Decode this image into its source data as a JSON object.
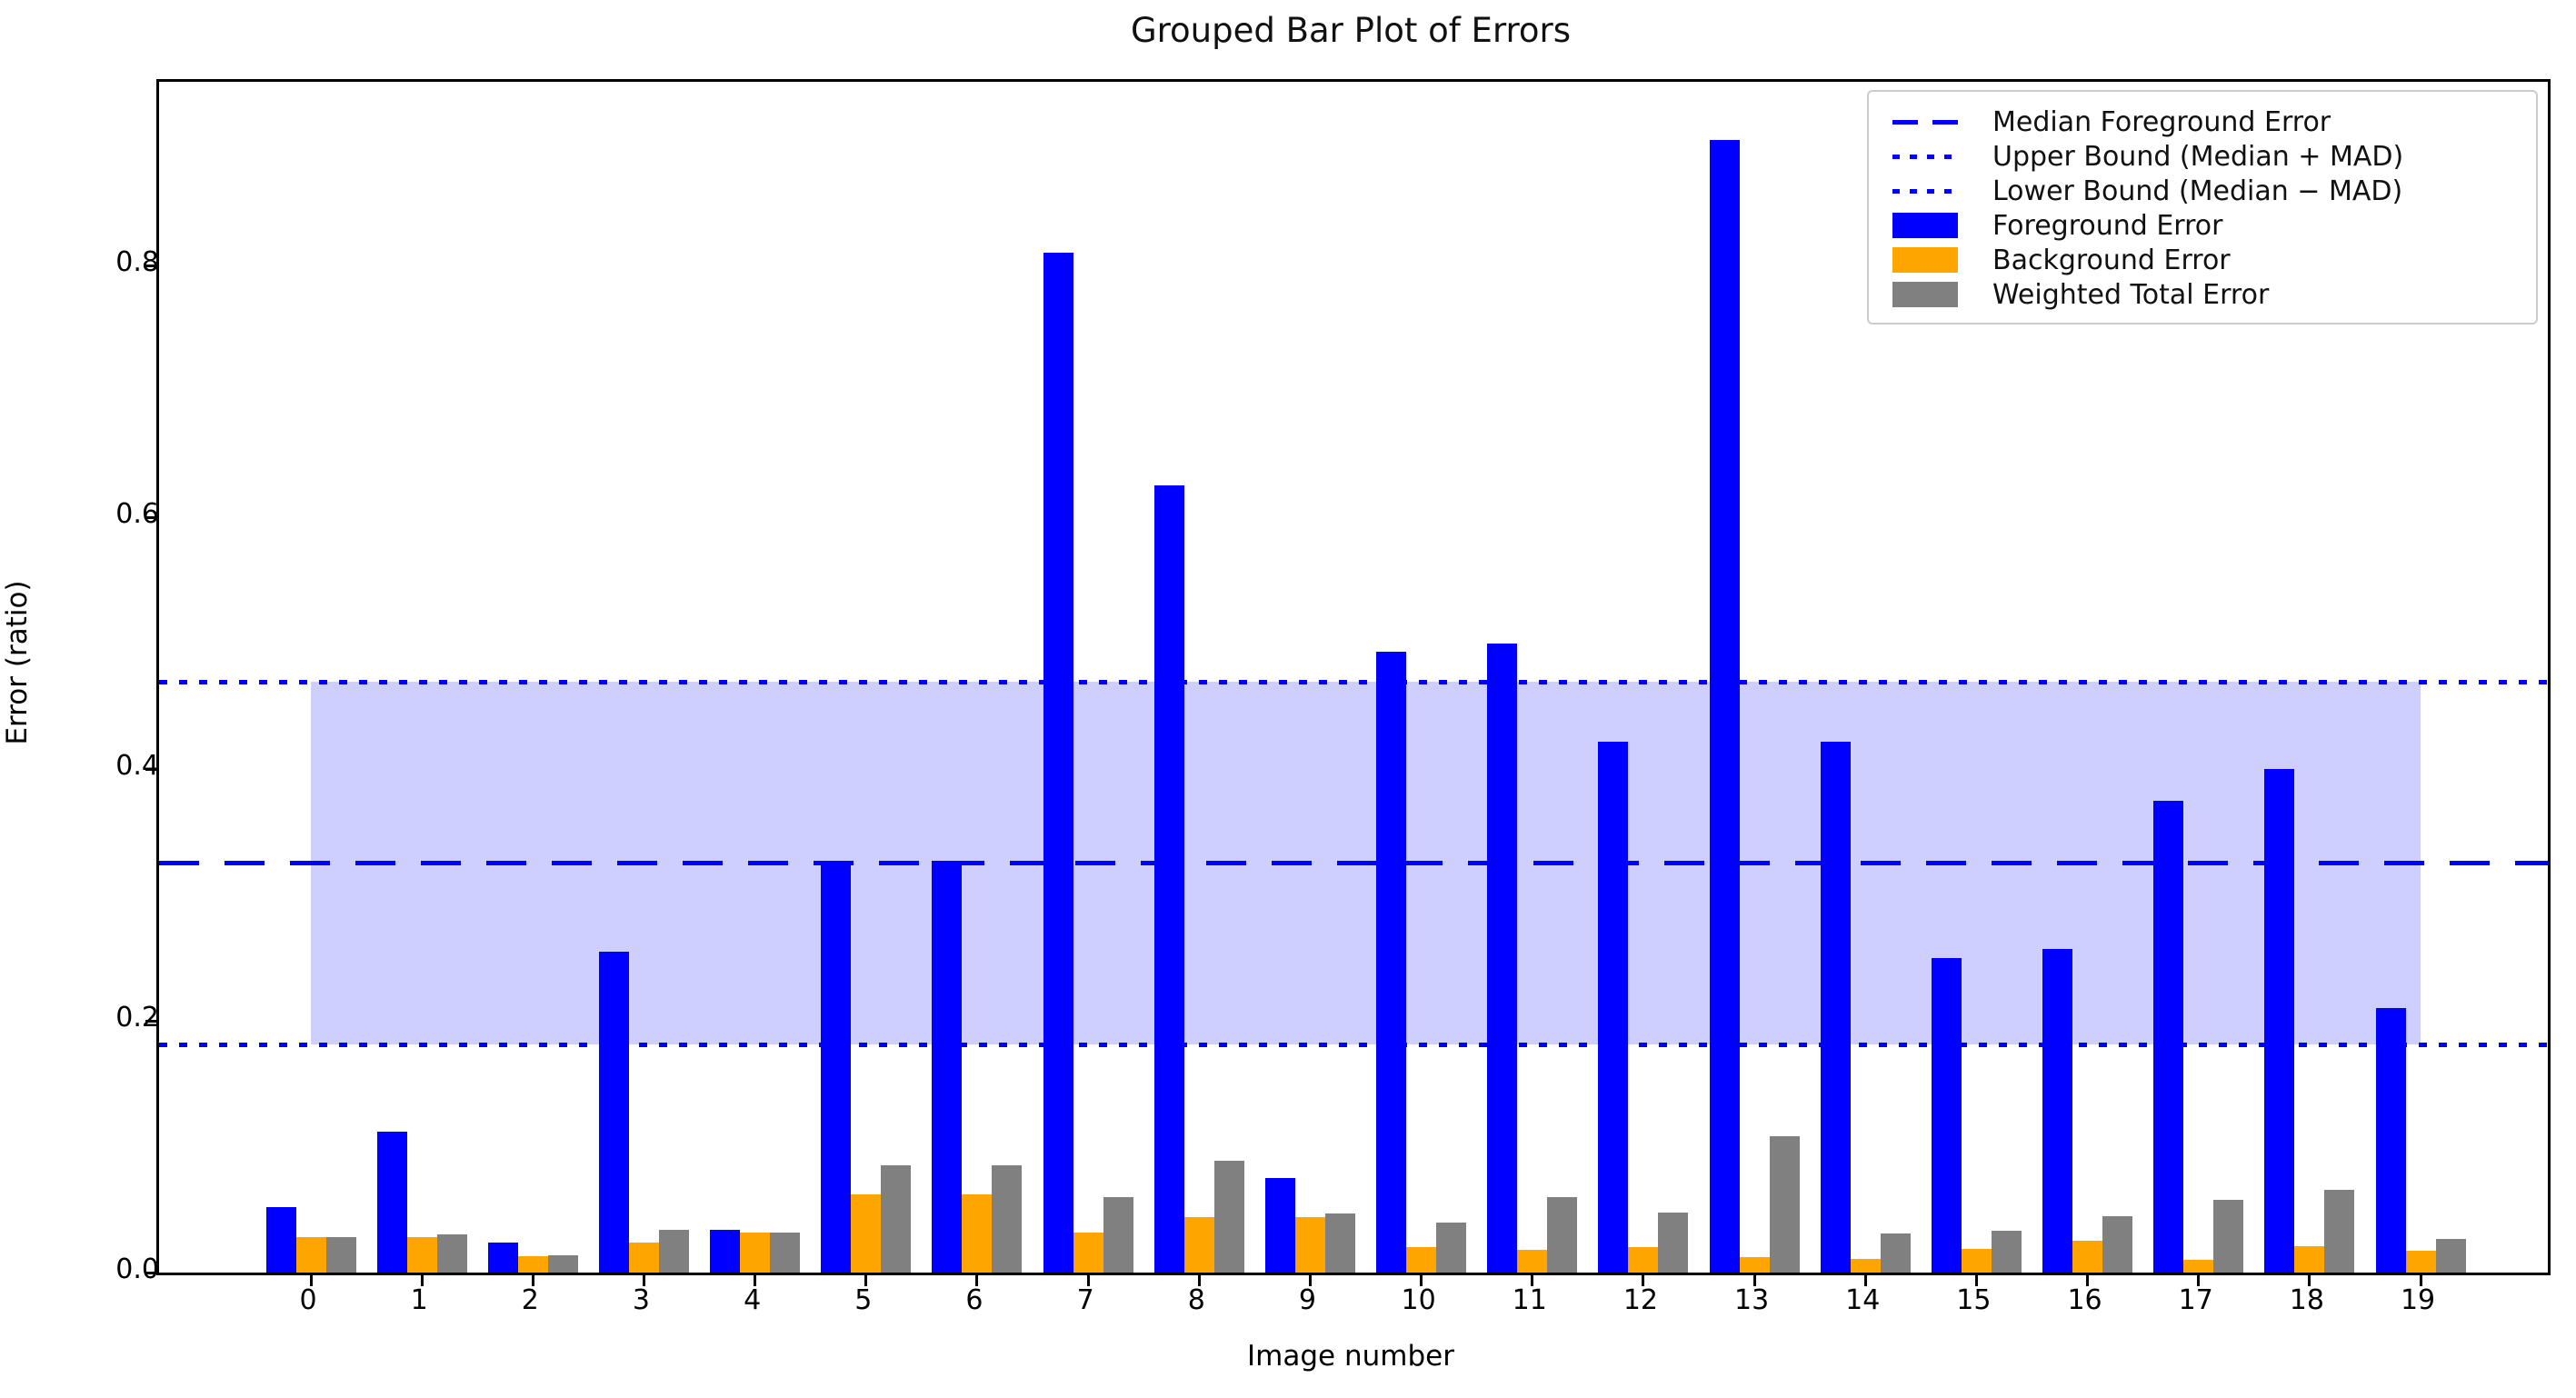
{
  "chart_data": {
    "type": "bar",
    "title": "Grouped Bar Plot of Errors",
    "xlabel": "Image number",
    "ylabel": "Error (ratio)",
    "categories": [
      "0",
      "1",
      "2",
      "3",
      "4",
      "5",
      "6",
      "7",
      "8",
      "9",
      "10",
      "11",
      "12",
      "13",
      "14",
      "15",
      "16",
      "17",
      "18",
      "19"
    ],
    "series": [
      {
        "name": "Foreground Error",
        "color": "#0000ff",
        "values": [
          0.052,
          0.112,
          0.024,
          0.255,
          0.034,
          0.327,
          0.327,
          0.81,
          0.625,
          0.075,
          0.493,
          0.5,
          0.422,
          0.9,
          0.422,
          0.25,
          0.257,
          0.375,
          0.4,
          0.21
        ]
      },
      {
        "name": "Background Error",
        "color": "#ffa500",
        "values": [
          0.028,
          0.028,
          0.013,
          0.024,
          0.032,
          0.062,
          0.062,
          0.032,
          0.044,
          0.044,
          0.02,
          0.018,
          0.02,
          0.012,
          0.011,
          0.019,
          0.025,
          0.01,
          0.021,
          0.017
        ]
      },
      {
        "name": "Weighted Total Error",
        "color": "#808080",
        "values": [
          0.028,
          0.03,
          0.014,
          0.034,
          0.032,
          0.085,
          0.085,
          0.06,
          0.089,
          0.047,
          0.04,
          0.06,
          0.048,
          0.108,
          0.031,
          0.033,
          0.045,
          0.058,
          0.066,
          0.027
        ]
      }
    ],
    "lines": [
      {
        "name": "Median Foreground Error",
        "style": "dashed",
        "color": "#0000ff",
        "value": 0.325
      },
      {
        "name": "Upper Bound (Median + MAD)",
        "style": "dotted",
        "color": "#0000ff",
        "value": 0.469
      },
      {
        "name": "Lower Bound (Median − MAD)",
        "style": "dotted",
        "color": "#0000ff",
        "value": 0.181
      }
    ],
    "band": {
      "low": 0.181,
      "high": 0.469,
      "x_start_category": "0",
      "x_end_category": "19",
      "color": "rgba(0,0,255,0.19)"
    },
    "y_ticks": [
      {
        "label": "0.0",
        "value": 0.0
      },
      {
        "label": "0.2",
        "value": 0.2
      },
      {
        "label": "0.4",
        "value": 0.4
      },
      {
        "label": "0.6",
        "value": 0.6
      },
      {
        "label": "0.8",
        "value": 0.8
      }
    ],
    "ylim": [
      0,
      0.946
    ],
    "grid": false,
    "legend_position": "upper right",
    "legend": [
      {
        "label": "Median Foreground Error",
        "swatch": "dashed-line",
        "color": "#0000ff"
      },
      {
        "label": "Upper Bound (Median + MAD)",
        "swatch": "dotted-line",
        "color": "#0000ff"
      },
      {
        "label": "Lower Bound (Median − MAD)",
        "swatch": "dotted-line",
        "color": "#0000ff"
      },
      {
        "label": "Foreground Error",
        "swatch": "rect",
        "color": "#0000ff"
      },
      {
        "label": "Background Error",
        "swatch": "rect",
        "color": "#ffa500"
      },
      {
        "label": "Weighted Total Error",
        "swatch": "rect",
        "color": "#808080"
      }
    ]
  }
}
